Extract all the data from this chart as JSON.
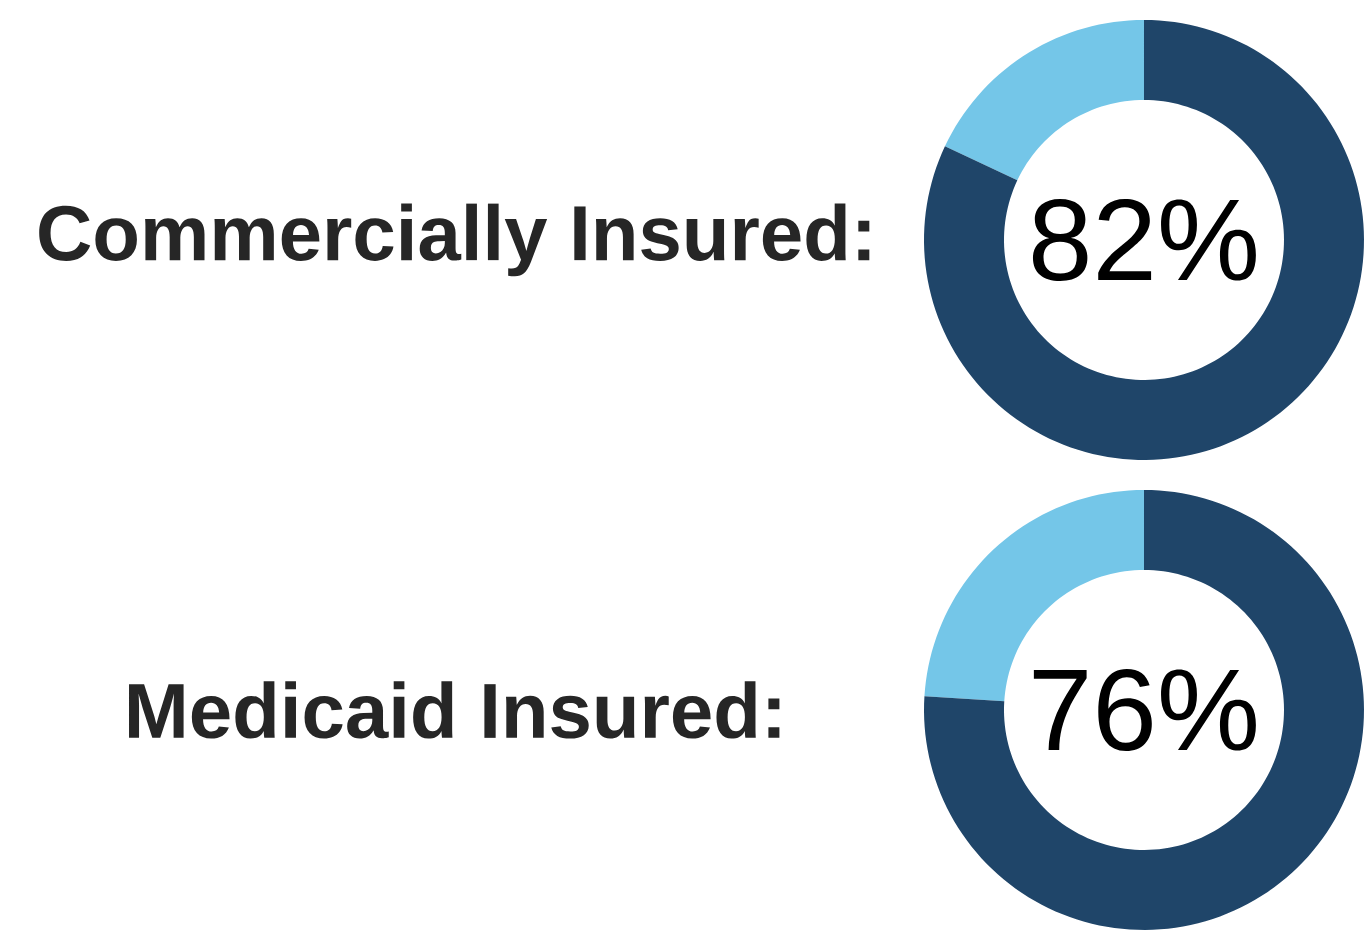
{
  "chart_data": [
    {
      "type": "donut",
      "title": "Commercially Insured:",
      "categories": [
        null,
        null
      ],
      "values": [
        82,
        18
      ],
      "colors": [
        "#1f4569",
        "#74c6e8"
      ],
      "value_labels": [
        "82%",
        null
      ]
    },
    {
      "type": "donut",
      "title": "Medicaid Insured:",
      "categories": [
        null,
        null
      ],
      "values": [
        76,
        24
      ],
      "colors": [
        "#1f4569",
        "#74c6e8"
      ],
      "value_labels": [
        "76%",
        null
      ]
    }
  ]
}
